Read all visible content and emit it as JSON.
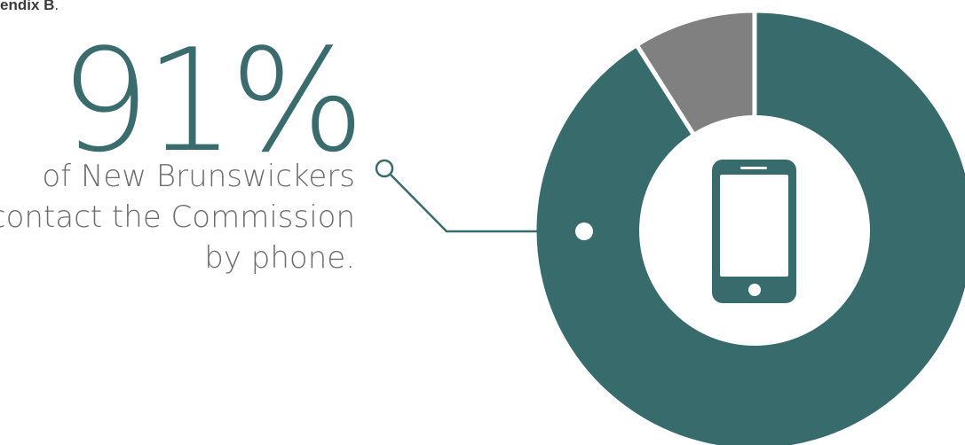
{
  "header_fragment": {
    "bold_text": "endix B",
    "trailing": "."
  },
  "callout": {
    "stat": "91%",
    "lines": [
      "of New Brunswickers",
      "contact the Commission",
      "by phone."
    ]
  },
  "chart_data": {
    "type": "pie",
    "variant": "donut",
    "slices": [
      {
        "value": 91,
        "color": "#386b6c"
      },
      {
        "value": 9,
        "color": "#808080"
      }
    ],
    "center_icon": "smartphone-icon",
    "colors": {
      "primary": "#386b6c",
      "secondary": "#808080",
      "icon_bg": "#ffffff"
    }
  }
}
